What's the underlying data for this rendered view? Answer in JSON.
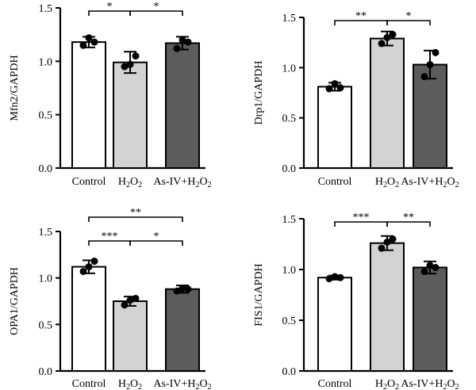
{
  "figure": {
    "colors": {
      "control": "#ffffff",
      "h2o2": "#d3d3d3",
      "asiv": "#5c5c5c",
      "stroke": "#000000"
    }
  },
  "chart_data": [
    {
      "type": "bar",
      "panel": "top-left",
      "ylabel": "Mfn2/GAPDH",
      "categories": [
        "Control",
        "H2O2",
        "As-IV+H2O2"
      ],
      "values": [
        1.18,
        0.99,
        1.17
      ],
      "errors": [
        0.05,
        0.1,
        0.06
      ],
      "points": [
        [
          1.15,
          1.22,
          1.18
        ],
        [
          0.95,
          0.97,
          1.05
        ],
        [
          1.12,
          1.2,
          1.18
        ]
      ],
      "ylim": [
        0,
        1.5
      ],
      "yticks": [
        "0.0",
        "0.5",
        "1.0",
        "1.5"
      ],
      "significance": [
        {
          "from": 0,
          "to": 1,
          "label": "*",
          "level": 0
        },
        {
          "from": 1,
          "to": 2,
          "label": "*",
          "level": 0
        }
      ]
    },
    {
      "type": "bar",
      "panel": "top-right",
      "ylabel": "Drp1/GAPDH",
      "categories": [
        "Control",
        "H2O2",
        "As-IV+H2O2"
      ],
      "values": [
        0.81,
        1.29,
        1.03
      ],
      "errors": [
        0.04,
        0.07,
        0.14
      ],
      "points": [
        [
          0.79,
          0.84,
          0.8
        ],
        [
          1.24,
          1.3,
          1.33
        ],
        [
          0.91,
          1.03,
          1.15
        ]
      ],
      "ylim": [
        0,
        1.5
      ],
      "yticks": [
        "0.0",
        "0.5",
        "1.0",
        "1.5"
      ],
      "significance": [
        {
          "from": 0,
          "to": 1,
          "label": "**",
          "level": 0
        },
        {
          "from": 1,
          "to": 2,
          "label": "*",
          "level": 0
        }
      ]
    },
    {
      "type": "bar",
      "panel": "bottom-left",
      "ylabel": "OPA1/GAPDH",
      "categories": [
        "Control",
        "H2O2",
        "As-IV+H2O2"
      ],
      "values": [
        1.12,
        0.75,
        0.88
      ],
      "errors": [
        0.07,
        0.05,
        0.04
      ],
      "points": [
        [
          1.07,
          1.12,
          1.18
        ],
        [
          0.71,
          0.76,
          0.78
        ],
        [
          0.86,
          0.89,
          0.88
        ]
      ],
      "ylim": [
        0,
        1.5
      ],
      "yticks": [
        "0.0",
        "0.5",
        "1.0",
        "1.5"
      ],
      "significance": [
        {
          "from": 0,
          "to": 1,
          "label": "***",
          "level": 0
        },
        {
          "from": 1,
          "to": 2,
          "label": "*",
          "level": 0
        },
        {
          "from": 0,
          "to": 2,
          "label": "**",
          "level": 1
        }
      ]
    },
    {
      "type": "bar",
      "panel": "bottom-right",
      "ylabel": "FIS1/GAPDH",
      "categories": [
        "Control",
        "H2O2",
        "As-IV+H2O2"
      ],
      "values": [
        0.92,
        1.26,
        1.02
      ],
      "errors": [
        0.02,
        0.07,
        0.06
      ],
      "points": [
        [
          0.91,
          0.93,
          0.92
        ],
        [
          1.21,
          1.27,
          1.3
        ],
        [
          0.98,
          1.04,
          1.02
        ]
      ],
      "ylim": [
        0,
        1.5
      ],
      "yticks": [
        "0.0",
        "0.5",
        "1.0",
        "1.5"
      ],
      "significance": [
        {
          "from": 0,
          "to": 1,
          "label": "***",
          "level": 0
        },
        {
          "from": 1,
          "to": 2,
          "label": "**",
          "level": 0
        }
      ]
    }
  ]
}
